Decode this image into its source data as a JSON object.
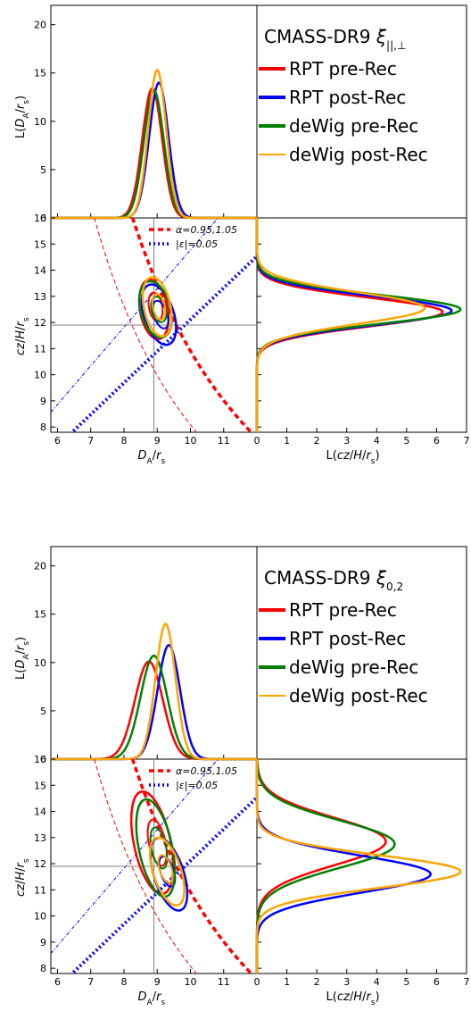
{
  "colors": {
    "rpt_pre": "#ff0000",
    "rpt_post": "#0000ff",
    "dewig_pre": "#008000",
    "dewig_post": "#ffa500",
    "dashed_alpha": "#ff0000",
    "dotted_eps": "#0000ff",
    "fiducial": "#808080"
  },
  "chart_data": [
    {
      "type": "line",
      "title": "CMASS-DR9 ξ||,⊥",
      "title_main": "CMASS-DR9 ",
      "title_sym": "ξ",
      "title_sub": "||,⊥",
      "legend": [
        "RPT pre-Rec",
        "RPT post-Rec",
        "deWig pre-Rec",
        "deWig post-Rec"
      ],
      "legend_small": [
        "α=0.95,1.05",
        "|ε|=0.05"
      ],
      "top_panel": {
        "ylabel": "L(D_A/r_s)",
        "ylim": [
          0,
          22
        ],
        "yticks": [
          "0",
          "5",
          "10",
          "15",
          "20"
        ],
        "series": [
          {
            "key": "rpt_pre",
            "mean": 8.85,
            "sigma": 0.3,
            "peak": 13.4
          },
          {
            "key": "rpt_post",
            "mean": 9.05,
            "sigma": 0.29,
            "peak": 14.0
          },
          {
            "key": "dewig_pre",
            "mean": 8.9,
            "sigma": 0.3,
            "peak": 13.2
          },
          {
            "key": "dewig_post",
            "mean": 9.0,
            "sigma": 0.27,
            "peak": 15.3
          }
        ]
      },
      "main_panel": {
        "xlabel": "D_A/r_s",
        "ylabel": "cz/H/r_s",
        "xlim": [
          5.8,
          12
        ],
        "ylim": [
          7.8,
          16
        ],
        "xticks": [
          "6",
          "7",
          "8",
          "9",
          "10",
          "11"
        ],
        "yticks": [
          "8",
          "9",
          "10",
          "11",
          "12",
          "13",
          "14",
          "15",
          "16"
        ],
        "fiducial": {
          "x": 8.9,
          "y": 11.9
        },
        "ellipses": [
          {
            "key": "rpt_pre",
            "cx": 8.9,
            "cy": 12.5,
            "rx": 0.42,
            "ry": 1.15,
            "angle": -10,
            "inner_cx": 8.95,
            "inner_cy": 12.6,
            "inner_rx": 0.2,
            "inner_ry": 0.55
          },
          {
            "key": "rpt_post",
            "cx": 9.05,
            "cy": 12.3,
            "rx": 0.45,
            "ry": 1.2,
            "angle": -18,
            "inner_cx": 9.1,
            "inner_cy": 12.3,
            "inner_rx": 0.2,
            "inner_ry": 0.55
          },
          {
            "key": "dewig_pre",
            "cx": 8.95,
            "cy": 12.5,
            "rx": 0.45,
            "ry": 1.1,
            "angle": -15,
            "inner_cx": 9.05,
            "inner_cy": 12.5,
            "inner_rx": 0.22,
            "inner_ry": 0.5
          },
          {
            "key": "dewig_post",
            "cx": 9.0,
            "cy": 12.6,
            "rx": 0.4,
            "ry": 1.15,
            "angle": -12,
            "inner_cx": 9.05,
            "inner_cy": 12.6,
            "inner_rx": 0.18,
            "inner_ry": 0.5
          }
        ]
      },
      "right_panel": {
        "xlabel": "L(cz/H/r_s)",
        "xlim": [
          0,
          7
        ],
        "xticks": [
          "0",
          "1",
          "2",
          "3",
          "4",
          "5",
          "6",
          "7"
        ],
        "series": [
          {
            "key": "rpt_pre",
            "mean": 12.4,
            "sigma": 0.55,
            "peak": 6.2
          },
          {
            "key": "rpt_post",
            "mean": 12.45,
            "sigma": 0.55,
            "peak": 6.5
          },
          {
            "key": "dewig_pre",
            "mean": 12.5,
            "sigma": 0.55,
            "peak": 6.8
          },
          {
            "key": "dewig_post",
            "mean": 12.55,
            "sigma": 0.6,
            "peak": 5.6
          }
        ]
      }
    },
    {
      "type": "line",
      "title": "CMASS-DR9 ξ0,2",
      "title_main": "CMASS-DR9 ",
      "title_sym": "ξ",
      "title_sub": "0,2",
      "legend": [
        "RPT pre-Rec",
        "RPT post-Rec",
        "deWig pre-Rec",
        "deWig post-Rec"
      ],
      "legend_small": [
        "α=0.95,1.05",
        "|ε|=0.05"
      ],
      "top_panel": {
        "ylabel": "L(D_A/r_s)",
        "ylim": [
          0,
          22
        ],
        "yticks": [
          "0",
          "5",
          "10",
          "15",
          "20"
        ],
        "series": [
          {
            "key": "rpt_pre",
            "mean": 8.75,
            "sigma": 0.42,
            "peak": 10.1
          },
          {
            "key": "rpt_post",
            "mean": 9.35,
            "sigma": 0.34,
            "peak": 11.8
          },
          {
            "key": "dewig_pre",
            "mean": 8.9,
            "sigma": 0.4,
            "peak": 10.7
          },
          {
            "key": "dewig_post",
            "mean": 9.25,
            "sigma": 0.3,
            "peak": 14.0
          }
        ]
      },
      "main_panel": {
        "xlabel": "D_A/r_s",
        "ylabel": "cz/H/r_s",
        "xlim": [
          5.8,
          12
        ],
        "ylim": [
          7.8,
          16
        ],
        "xticks": [
          "6",
          "7",
          "8",
          "9",
          "10",
          "11"
        ],
        "yticks": [
          "8",
          "9",
          "10",
          "11",
          "12",
          "13",
          "14",
          "15",
          "16"
        ],
        "fiducial": {
          "x": 8.9,
          "y": 11.9
        },
        "ellipses": [
          {
            "key": "rpt_pre",
            "cx": 8.85,
            "cy": 12.8,
            "rx": 0.55,
            "ry": 2.0,
            "angle": -12,
            "inner_cx": 9.0,
            "inner_cy": 12.8,
            "inner_rx": 0.25,
            "inner_ry": 0.9
          },
          {
            "key": "rpt_post",
            "cx": 9.35,
            "cy": 11.6,
            "rx": 0.45,
            "ry": 1.45,
            "angle": -18,
            "inner_cx": 9.3,
            "inner_cy": 11.7,
            "inner_rx": 0.2,
            "inner_ry": 0.6
          },
          {
            "key": "dewig_pre",
            "cx": 8.95,
            "cy": 12.6,
            "rx": 0.5,
            "ry": 1.9,
            "angle": -12,
            "inner_cx": 9.05,
            "inner_cy": 12.6,
            "inner_rx": 0.22,
            "inner_ry": 0.8
          },
          {
            "key": "dewig_post",
            "cx": 9.3,
            "cy": 11.7,
            "rx": 0.42,
            "ry": 1.35,
            "angle": -18,
            "inner_cx": 9.25,
            "inner_cy": 11.8,
            "inner_rx": 0.18,
            "inner_ry": 0.55
          }
        ]
      },
      "right_panel": {
        "xlabel": "L(cz/H/r_s)",
        "xlim": [
          0,
          7
        ],
        "xticks": [
          "0",
          "1",
          "2",
          "3",
          "4",
          "5",
          "6",
          "7"
        ],
        "series": [
          {
            "key": "rpt_pre",
            "mean": 12.85,
            "sigma": 0.9,
            "peak": 4.3
          },
          {
            "key": "rpt_post",
            "mean": 11.6,
            "sigma": 0.7,
            "peak": 5.8
          },
          {
            "key": "dewig_pre",
            "mean": 12.75,
            "sigma": 0.9,
            "peak": 4.6
          },
          {
            "key": "dewig_post",
            "mean": 11.7,
            "sigma": 0.62,
            "peak": 6.8
          }
        ]
      }
    }
  ]
}
